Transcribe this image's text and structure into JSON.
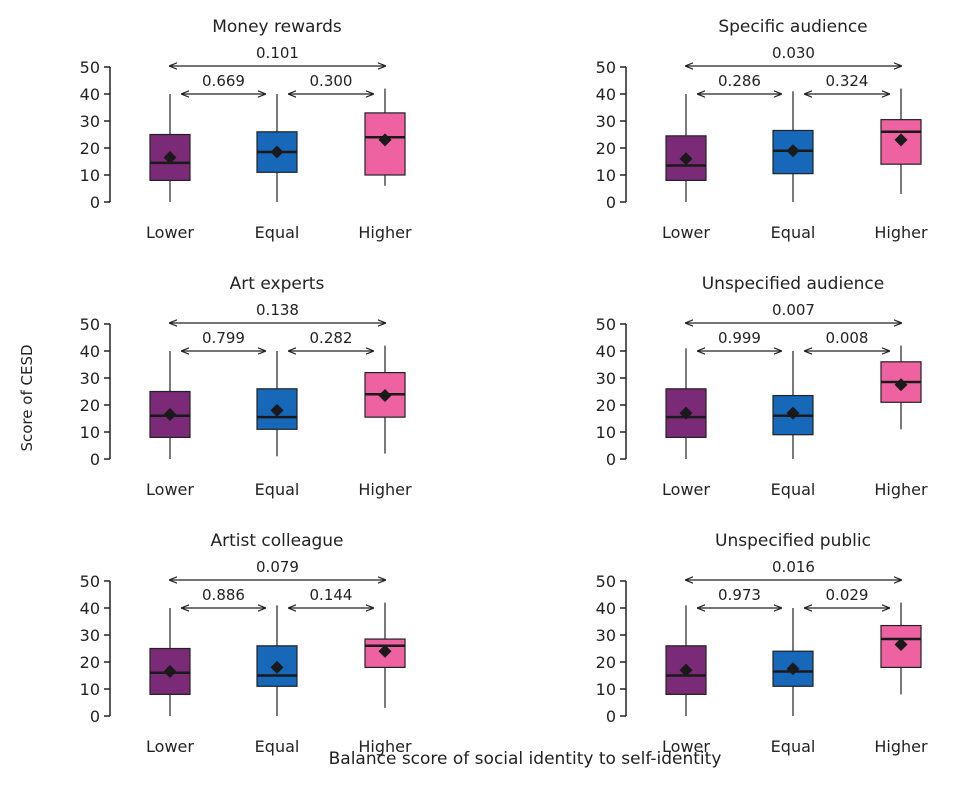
{
  "figure": {
    "ylabel": "Score of CESD",
    "xlabel": "Balance score of social identity to self-identity"
  },
  "colors": {
    "Lower": "#7b2a78",
    "Equal": "#1768b9",
    "Higher": "#ef62a1",
    "mean_marker": "#1a1a1a"
  },
  "chart_data": [
    {
      "type": "boxplot",
      "title": "Money rewards",
      "categories": [
        "Lower",
        "Equal",
        "Higher"
      ],
      "ylim": [
        0,
        50
      ],
      "yticks": [
        0,
        10,
        20,
        30,
        40,
        50
      ],
      "boxes": [
        {
          "min": 0,
          "q1": 8,
          "median": 14.5,
          "q3": 25,
          "max": 40,
          "mean": 16.5
        },
        {
          "min": 0,
          "q1": 11,
          "median": 18.5,
          "q3": 26,
          "max": 40,
          "mean": 18.5
        },
        {
          "min": 6,
          "q1": 10,
          "median": 24,
          "q3": 33,
          "max": 42,
          "mean": 23
        }
      ],
      "p_values": {
        "lower_equal": "0.669",
        "equal_higher": "0.300",
        "lower_higher": "0.101"
      }
    },
    {
      "type": "boxplot",
      "title": "Specific audience",
      "categories": [
        "Lower",
        "Equal",
        "Higher"
      ],
      "ylim": [
        0,
        50
      ],
      "yticks": [
        0,
        10,
        20,
        30,
        40,
        50
      ],
      "boxes": [
        {
          "min": 0,
          "q1": 8,
          "median": 13.5,
          "q3": 24.5,
          "max": 40,
          "mean": 16
        },
        {
          "min": 0,
          "q1": 10.5,
          "median": 19,
          "q3": 26.5,
          "max": 41,
          "mean": 19
        },
        {
          "min": 3,
          "q1": 14,
          "median": 26,
          "q3": 30.5,
          "max": 42,
          "mean": 23
        }
      ],
      "p_values": {
        "lower_equal": "0.286",
        "equal_higher": "0.324",
        "lower_higher": "0.030"
      }
    },
    {
      "type": "boxplot",
      "title": "Art experts",
      "categories": [
        "Lower",
        "Equal",
        "Higher"
      ],
      "ylim": [
        0,
        50
      ],
      "yticks": [
        0,
        10,
        20,
        30,
        40,
        50
      ],
      "boxes": [
        {
          "min": 0,
          "q1": 8,
          "median": 16,
          "q3": 25,
          "max": 40,
          "mean": 16.5
        },
        {
          "min": 1,
          "q1": 11,
          "median": 15.5,
          "q3": 26,
          "max": 40,
          "mean": 18
        },
        {
          "min": 2,
          "q1": 15.5,
          "median": 24,
          "q3": 32,
          "max": 42,
          "mean": 23.5
        }
      ],
      "p_values": {
        "lower_equal": "0.799",
        "equal_higher": "0.282",
        "lower_higher": "0.138"
      }
    },
    {
      "type": "boxplot",
      "title": "Unspecified audience",
      "categories": [
        "Lower",
        "Equal",
        "Higher"
      ],
      "ylim": [
        0,
        50
      ],
      "yticks": [
        0,
        10,
        20,
        30,
        40,
        50
      ],
      "boxes": [
        {
          "min": 0,
          "q1": 8,
          "median": 15.5,
          "q3": 26,
          "max": 41,
          "mean": 17
        },
        {
          "min": 0,
          "q1": 9,
          "median": 16,
          "q3": 23.5,
          "max": 40,
          "mean": 17
        },
        {
          "min": 11,
          "q1": 21,
          "median": 28.5,
          "q3": 36,
          "max": 42,
          "mean": 27.5
        }
      ],
      "p_values": {
        "lower_equal": "0.999",
        "equal_higher": "0.008",
        "lower_higher": "0.007"
      }
    },
    {
      "type": "boxplot",
      "title": "Artist colleague",
      "categories": [
        "Lower",
        "Equal",
        "Higher"
      ],
      "ylim": [
        0,
        50
      ],
      "yticks": [
        0,
        10,
        20,
        30,
        40,
        50
      ],
      "boxes": [
        {
          "min": 0,
          "q1": 8,
          "median": 16,
          "q3": 25,
          "max": 40,
          "mean": 16.5
        },
        {
          "min": 0,
          "q1": 11,
          "median": 15,
          "q3": 26,
          "max": 41,
          "mean": 18
        },
        {
          "min": 3,
          "q1": 18,
          "median": 26,
          "q3": 28.5,
          "max": 42,
          "mean": 24
        }
      ],
      "p_values": {
        "lower_equal": "0.886",
        "equal_higher": "0.144",
        "lower_higher": "0.079"
      }
    },
    {
      "type": "boxplot",
      "title": "Unspecified public",
      "categories": [
        "Lower",
        "Equal",
        "Higher"
      ],
      "ylim": [
        0,
        50
      ],
      "yticks": [
        0,
        10,
        20,
        30,
        40,
        50
      ],
      "boxes": [
        {
          "min": 0,
          "q1": 8,
          "median": 15,
          "q3": 26,
          "max": 41,
          "mean": 17
        },
        {
          "min": 0,
          "q1": 11,
          "median": 16.5,
          "q3": 24,
          "max": 40,
          "mean": 17.5
        },
        {
          "min": 8,
          "q1": 18,
          "median": 28.5,
          "q3": 33.5,
          "max": 42,
          "mean": 26.5
        }
      ],
      "p_values": {
        "lower_equal": "0.973",
        "equal_higher": "0.029",
        "lower_higher": "0.016"
      }
    }
  ]
}
